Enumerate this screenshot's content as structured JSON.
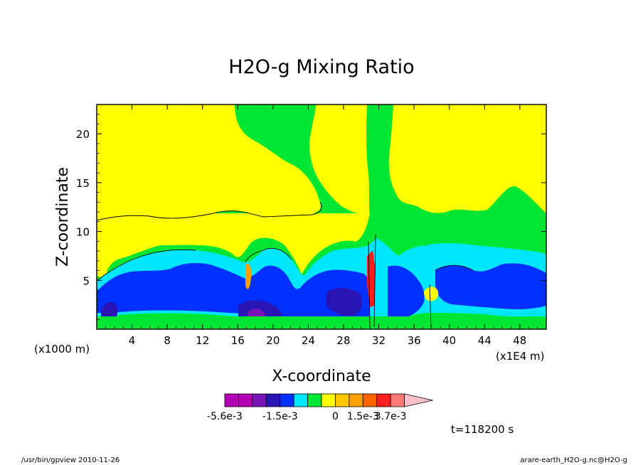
{
  "chart_data": {
    "type": "heatmap",
    "title": "H2O-g Mixing Ratio",
    "xlabel": "X-coordinate",
    "ylabel": "Z-coordinate",
    "x_unit_left": "(x1000 m)",
    "x_unit_right": "(x1E4 m)",
    "xlim": [
      0,
      51
    ],
    "ylim": [
      0,
      23
    ],
    "x_ticks": [
      4,
      8,
      12,
      16,
      20,
      24,
      28,
      32,
      36,
      40,
      44,
      48
    ],
    "y_ticks": [
      5,
      10,
      15,
      20
    ],
    "x_tick_labels": [
      "4",
      "8",
      "12",
      "16",
      "20",
      "24",
      "28",
      "32",
      "36",
      "40",
      "44",
      "48"
    ],
    "y_tick_labels": [
      "5",
      "10",
      "15",
      "20"
    ],
    "colorbar": {
      "colors": [
        "#b400b4",
        "#b400b4",
        "#7a14b4",
        "#2a14b4",
        "#0030ff",
        "#00e6ff",
        "#00e632",
        "#ffff00",
        "#ffc800",
        "#ffa000",
        "#ff6400",
        "#ff1e1e",
        "#ff7878",
        "#ffc0c8"
      ],
      "labels": [
        "-5.6e-3",
        "-1.5e-3",
        "0",
        "1.5e-3",
        "3.7e-3"
      ],
      "label_bounds": [
        0,
        4,
        8,
        10,
        12
      ]
    },
    "time_label": "t=118200 s"
  },
  "footer": {
    "left": "/usr/bin/gpview   2010-11-26",
    "right": "arare-earth_H2O-g.nc@H2O-g"
  }
}
